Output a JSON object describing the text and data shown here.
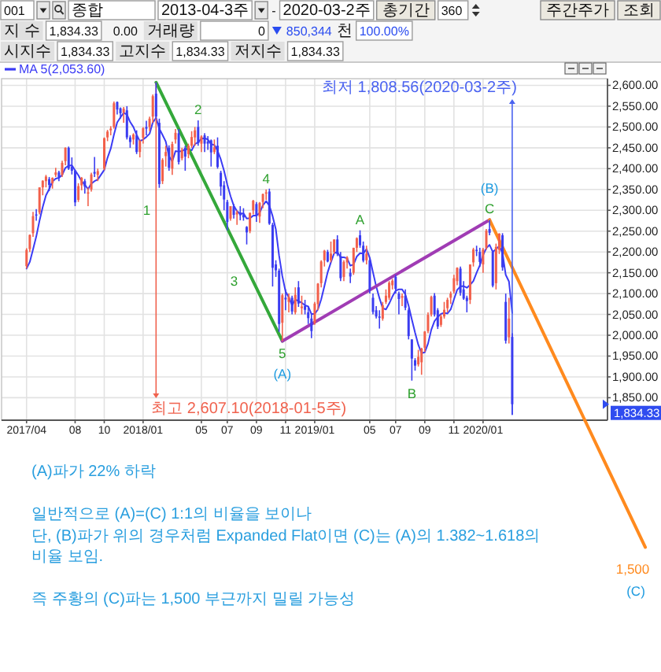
{
  "chart_data": {
    "type": "candlestick",
    "x": [
      "2017-04-24",
      "2017-05-01",
      "2017-05-08",
      "2017-05-15",
      "2017-05-22",
      "2017-05-29",
      "2017-06-05",
      "2017-06-12",
      "2017-06-19",
      "2017-06-26",
      "2017-07-03",
      "2017-07-10",
      "2017-07-17",
      "2017-07-24",
      "2017-07-31",
      "2017-08-07",
      "2017-08-14",
      "2017-08-21",
      "2017-08-28",
      "2017-09-04",
      "2017-09-11",
      "2017-09-18",
      "2017-09-25",
      "2017-10-09",
      "2017-10-16",
      "2017-10-23",
      "2017-10-30",
      "2017-11-06",
      "2017-11-13",
      "2017-11-20",
      "2017-11-27",
      "2017-12-04",
      "2017-12-11",
      "2017-12-18",
      "2017-12-25",
      "2018-01-01",
      "2018-01-08",
      "2018-01-15",
      "2018-01-22",
      "2018-01-29",
      "2018-02-05",
      "2018-02-12",
      "2018-02-19",
      "2018-02-26",
      "2018-03-05",
      "2018-03-12",
      "2018-03-19",
      "2018-03-26",
      "2018-04-02",
      "2018-04-09",
      "2018-04-16",
      "2018-04-23",
      "2018-04-30",
      "2018-05-07",
      "2018-05-14",
      "2018-05-21",
      "2018-05-28",
      "2018-06-04",
      "2018-06-11",
      "2018-06-18",
      "2018-06-25",
      "2018-07-02",
      "2018-07-09",
      "2018-07-16",
      "2018-07-23",
      "2018-07-30",
      "2018-08-06",
      "2018-08-13",
      "2018-08-20",
      "2018-08-27",
      "2018-09-03",
      "2018-09-10",
      "2018-09-17",
      "2018-09-24",
      "2018-10-01",
      "2018-10-08",
      "2018-10-15",
      "2018-10-22",
      "2018-10-29",
      "2018-11-05",
      "2018-11-12",
      "2018-11-19",
      "2018-11-26",
      "2018-12-03",
      "2018-12-10",
      "2018-12-17",
      "2018-12-24",
      "2018-12-31",
      "2019-01-07",
      "2019-01-14",
      "2019-01-21",
      "2019-01-28",
      "2019-02-04",
      "2019-02-11",
      "2019-02-18",
      "2019-02-25",
      "2019-03-04",
      "2019-03-11",
      "2019-03-18",
      "2019-03-25",
      "2019-04-01",
      "2019-04-08",
      "2019-04-15",
      "2019-04-22",
      "2019-04-29",
      "2019-05-06",
      "2019-05-13",
      "2019-05-20",
      "2019-05-27",
      "2019-06-03",
      "2019-06-10",
      "2019-06-17",
      "2019-06-24",
      "2019-07-01",
      "2019-07-08",
      "2019-07-15",
      "2019-07-22",
      "2019-07-29",
      "2019-08-05",
      "2019-08-12",
      "2019-08-19",
      "2019-08-26",
      "2019-09-02",
      "2019-09-09",
      "2019-09-16",
      "2019-09-23",
      "2019-09-30",
      "2019-10-07",
      "2019-10-14",
      "2019-10-21",
      "2019-10-28",
      "2019-11-04",
      "2019-11-11",
      "2019-11-18",
      "2019-11-25",
      "2019-12-02",
      "2019-12-09",
      "2019-12-16",
      "2019-12-23",
      "2019-12-30",
      "2020-01-06",
      "2020-01-13",
      "2020-01-20",
      "2020-01-27",
      "2020-02-03",
      "2020-02-10",
      "2020-02-17",
      "2020-02-24",
      "2020-03-02",
      "2020-03-09"
    ],
    "ohlc": [
      [
        2166,
        2209,
        2160,
        2205
      ],
      [
        2207,
        2242,
        2200,
        2241
      ],
      [
        2245,
        2296,
        2236,
        2286
      ],
      [
        2290,
        2303,
        2275,
        2288
      ],
      [
        2295,
        2355,
        2290,
        2355
      ],
      [
        2355,
        2372,
        2336,
        2371
      ],
      [
        2370,
        2385,
        2355,
        2381
      ],
      [
        2375,
        2380,
        2346,
        2361
      ],
      [
        2365,
        2379,
        2352,
        2378
      ],
      [
        2385,
        2402,
        2380,
        2391
      ],
      [
        2391,
        2395,
        2370,
        2379
      ],
      [
        2385,
        2419,
        2380,
        2414
      ],
      [
        2418,
        2451,
        2408,
        2450
      ],
      [
        2450,
        2453,
        2397,
        2400
      ],
      [
        2405,
        2427,
        2386,
        2395
      ],
      [
        2395,
        2397,
        2310,
        2319
      ],
      [
        2325,
        2365,
        2320,
        2358
      ],
      [
        2360,
        2380,
        2348,
        2378
      ],
      [
        2370,
        2375,
        2340,
        2357
      ],
      [
        2340,
        2355,
        2310,
        2343
      ],
      [
        2350,
        2390,
        2345,
        2386
      ],
      [
        2392,
        2428,
        2380,
        2388
      ],
      [
        2385,
        2400,
        2370,
        2394
      ],
      [
        2400,
        2475,
        2396,
        2473
      ],
      [
        2475,
        2493,
        2466,
        2489
      ],
      [
        2492,
        2502,
        2480,
        2496
      ],
      [
        2500,
        2561,
        2496,
        2557
      ],
      [
        2560,
        2561,
        2530,
        2542
      ],
      [
        2545,
        2547,
        2520,
        2533
      ],
      [
        2535,
        2548,
        2510,
        2544
      ],
      [
        2540,
        2550,
        2470,
        2475
      ],
      [
        2475,
        2480,
        2450,
        2464
      ],
      [
        2470,
        2485,
        2458,
        2482
      ],
      [
        2480,
        2492,
        2435,
        2440
      ],
      [
        2440,
        2470,
        2427,
        2467
      ],
      [
        2474,
        2500,
        2460,
        2497
      ],
      [
        2500,
        2515,
        2480,
        2496
      ],
      [
        2500,
        2525,
        2490,
        2520
      ],
      [
        2525,
        2578,
        2510,
        2574
      ],
      [
        2580,
        2607.1,
        2520,
        2525
      ],
      [
        2510,
        2520,
        2354,
        2363
      ],
      [
        2370,
        2425,
        2363,
        2421
      ],
      [
        2430,
        2455,
        2405,
        2440
      ],
      [
        2450,
        2456,
        2395,
        2402
      ],
      [
        2400,
        2465,
        2385,
        2459
      ],
      [
        2470,
        2495,
        2460,
        2486
      ],
      [
        2485,
        2495,
        2410,
        2416
      ],
      [
        2425,
        2450,
        2420,
        2445
      ],
      [
        2450,
        2455,
        2395,
        2429
      ],
      [
        2435,
        2460,
        2425,
        2455
      ],
      [
        2455,
        2490,
        2450,
        2476
      ],
      [
        2475,
        2500,
        2455,
        2492
      ],
      [
        2500,
        2516,
        2455,
        2461
      ],
      [
        2460,
        2480,
        2440,
        2477
      ],
      [
        2480,
        2485,
        2440,
        2460
      ],
      [
        2465,
        2478,
        2445,
        2460
      ],
      [
        2468,
        2470,
        2405,
        2439
      ],
      [
        2440,
        2470,
        2435,
        2451
      ],
      [
        2455,
        2475,
        2400,
        2404
      ],
      [
        2390,
        2395,
        2335,
        2357
      ],
      [
        2360,
        2370,
        2300,
        2326
      ],
      [
        2320,
        2325,
        2252,
        2272
      ],
      [
        2280,
        2310,
        2275,
        2310
      ],
      [
        2310,
        2315,
        2280,
        2289
      ],
      [
        2290,
        2300,
        2265,
        2295
      ],
      [
        2295,
        2310,
        2276,
        2288
      ],
      [
        2290,
        2305,
        2275,
        2283
      ],
      [
        2260,
        2262,
        2218,
        2247
      ],
      [
        2250,
        2294,
        2245,
        2294
      ],
      [
        2300,
        2325,
        2290,
        2323
      ],
      [
        2315,
        2320,
        2272,
        2288
      ],
      [
        2285,
        2320,
        2270,
        2318
      ],
      [
        2320,
        2340,
        2305,
        2339
      ],
      [
        2340,
        2350,
        2325,
        2343
      ],
      [
        2345,
        2352,
        2265,
        2268
      ],
      [
        2265,
        2270,
        2117,
        2162
      ],
      [
        2170,
        2180,
        2140,
        2156
      ],
      [
        2155,
        2160,
        2008,
        2027
      ],
      [
        2030,
        2100,
        1986,
        2096
      ],
      [
        2090,
        2110,
        2060,
        2086
      ],
      [
        2080,
        2100,
        2055,
        2092
      ],
      [
        2090,
        2095,
        2050,
        2057
      ],
      [
        2055,
        2115,
        2050,
        2097
      ],
      [
        2115,
        2130,
        2068,
        2076
      ],
      [
        2065,
        2095,
        2050,
        2069
      ],
      [
        2070,
        2085,
        2050,
        2061
      ],
      [
        2055,
        2070,
        2027,
        2041
      ],
      [
        2040,
        2050,
        1993,
        2010
      ],
      [
        2030,
        2080,
        2025,
        2076
      ],
      [
        2075,
        2125,
        2060,
        2124
      ],
      [
        2125,
        2180,
        2115,
        2177
      ],
      [
        2180,
        2205,
        2165,
        2203
      ],
      [
        2200,
        2205,
        2175,
        2177
      ],
      [
        2180,
        2225,
        2175,
        2196
      ],
      [
        2200,
        2230,
        2195,
        2230
      ],
      [
        2230,
        2240,
        2190,
        2195
      ],
      [
        2190,
        2200,
        2130,
        2137
      ],
      [
        2140,
        2180,
        2130,
        2176
      ],
      [
        2175,
        2190,
        2160,
        2187
      ],
      [
        2150,
        2160,
        2125,
        2141
      ],
      [
        2150,
        2210,
        2145,
        2210
      ],
      [
        2210,
        2235,
        2200,
        2233
      ],
      [
        2240,
        2252,
        2210,
        2216
      ],
      [
        2215,
        2225,
        2175,
        2179
      ],
      [
        2180,
        2215,
        2170,
        2196
      ],
      [
        2180,
        2185,
        2100,
        2108
      ],
      [
        2090,
        2100,
        2050,
        2056
      ],
      [
        2060,
        2070,
        2040,
        2045
      ],
      [
        2045,
        2060,
        2016,
        2042
      ],
      [
        2040,
        2080,
        2035,
        2072
      ],
      [
        2080,
        2110,
        2075,
        2095
      ],
      [
        2090,
        2130,
        2085,
        2126
      ],
      [
        2120,
        2135,
        2110,
        2131
      ],
      [
        2140,
        2145,
        2100,
        2111
      ],
      [
        2100,
        2105,
        2050,
        2087
      ],
      [
        2090,
        2100,
        2070,
        2094
      ],
      [
        2095,
        2110,
        2060,
        2066
      ],
      [
        2060,
        2065,
        1990,
        1998
      ],
      [
        1990,
        1990,
        1891,
        1944
      ],
      [
        1940,
        1945,
        1915,
        1927
      ],
      [
        1930,
        1965,
        1925,
        1948
      ],
      [
        1935,
        1970,
        1905,
        1968
      ],
      [
        1970,
        2010,
        1960,
        2009
      ],
      [
        2010,
        2055,
        2005,
        2049
      ],
      [
        2050,
        2095,
        2045,
        2092
      ],
      [
        2095,
        2101,
        2045,
        2050
      ],
      [
        2060,
        2065,
        2015,
        2021
      ],
      [
        2025,
        2050,
        2020,
        2045
      ],
      [
        2045,
        2080,
        2040,
        2061
      ],
      [
        2065,
        2090,
        2055,
        2085
      ],
      [
        2090,
        2105,
        2075,
        2100
      ],
      [
        2105,
        2145,
        2100,
        2137
      ],
      [
        2130,
        2163,
        2120,
        2162
      ],
      [
        2160,
        2165,
        2095,
        2102
      ],
      [
        2110,
        2130,
        2085,
        2088
      ],
      [
        2090,
        2095,
        2055,
        2082
      ],
      [
        2085,
        2170,
        2075,
        2170
      ],
      [
        2175,
        2210,
        2165,
        2206
      ],
      [
        2205,
        2215,
        2190,
        2204
      ],
      [
        2200,
        2210,
        2164,
        2176
      ],
      [
        2170,
        2210,
        2150,
        2206
      ],
      [
        2210,
        2255,
        2205,
        2251
      ],
      [
        2255,
        2277,
        2240,
        2246
      ],
      [
        2200,
        2200,
        2115,
        2119
      ],
      [
        2125,
        2220,
        2110,
        2212
      ],
      [
        2205,
        2245,
        2195,
        2244
      ],
      [
        2240,
        2245,
        2155,
        2163
      ],
      [
        2080,
        2100,
        1980,
        1987
      ],
      [
        1995,
        2090,
        1980,
        2040
      ],
      [
        1996,
        2005,
        1808.56,
        1834.33
      ]
    ],
    "colors": [
      "#f2604b",
      "#f2604b",
      "#f2604b",
      "#3a3cf0",
      "#f2604b",
      "#f2604b",
      "#f2604b",
      "#3a3cf0",
      "#f2604b",
      "#f2604b",
      "#3a3cf0",
      "#f2604b",
      "#f2604b",
      "#3a3cf0",
      "#3a3cf0",
      "#3a3cf0",
      "#f2604b",
      "#f2604b",
      "#3a3cf0",
      "#f2604b",
      "#f2604b",
      "#3a3cf0",
      "#f2604b",
      "#f2604b",
      "#f2604b",
      "#f2604b",
      "#f2604b",
      "#3a3cf0",
      "#3a3cf0",
      "#f2604b",
      "#3a3cf0",
      "#3a3cf0",
      "#f2604b",
      "#3a3cf0",
      "#f2604b",
      "#f2604b",
      "#3a3cf0",
      "#f2604b",
      "#f2604b",
      "#3a3cf0",
      "#3a3cf0",
      "#f2604b",
      "#f2604b",
      "#3a3cf0",
      "#f2604b",
      "#f2604b",
      "#3a3cf0",
      "#f2604b",
      "#3a3cf0",
      "#f2604b",
      "#f2604b",
      "#f2604b",
      "#3a3cf0",
      "#f2604b",
      "#3a3cf0",
      "#3a3cf0",
      "#3a3cf0",
      "#f2604b",
      "#3a3cf0",
      "#3a3cf0",
      "#3a3cf0",
      "#3a3cf0",
      "#f2604b",
      "#3a3cf0",
      "#f2604b",
      "#3a3cf0",
      "#3a3cf0",
      "#3a3cf0",
      "#f2604b",
      "#f2604b",
      "#3a3cf0",
      "#f2604b",
      "#f2604b",
      "#f2604b",
      "#3a3cf0",
      "#3a3cf0",
      "#3a3cf0",
      "#3a3cf0",
      "#f2604b",
      "#3a3cf0",
      "#f2604b",
      "#3a3cf0",
      "#f2604b",
      "#3a3cf0",
      "#f2604b",
      "#3a3cf0",
      "#3a3cf0",
      "#3a3cf0",
      "#f2604b",
      "#f2604b",
      "#f2604b",
      "#f2604b",
      "#3a3cf0",
      "#f2604b",
      "#f2604b",
      "#3a3cf0",
      "#3a3cf0",
      "#f2604b",
      "#f2604b",
      "#3a3cf0",
      "#f2604b",
      "#f2604b",
      "#3a3cf0",
      "#3a3cf0",
      "#f2604b",
      "#3a3cf0",
      "#3a3cf0",
      "#3a3cf0",
      "#3a3cf0",
      "#f2604b",
      "#f2604b",
      "#f2604b",
      "#f2604b",
      "#3a3cf0",
      "#3a3cf0",
      "#f2604b",
      "#3a3cf0",
      "#3a3cf0",
      "#3a3cf0",
      "#3a3cf0",
      "#f2604b",
      "#f2604b",
      "#f2604b",
      "#f2604b",
      "#f2604b",
      "#3a3cf0",
      "#3a3cf0",
      "#f2604b",
      "#f2604b",
      "#f2604b",
      "#f2604b",
      "#f2604b",
      "#f2604b",
      "#3a3cf0",
      "#3a3cf0",
      "#3a3cf0",
      "#f2604b",
      "#f2604b",
      "#3a3cf0",
      "#3a3cf0",
      "#f2604b",
      "#f2604b",
      "#3a3cf0",
      "#3a3cf0",
      "#f2604b",
      "#f2604b",
      "#3a3cf0",
      "#3a3cf0",
      "#f2604b",
      "#3a3cf0"
    ],
    "series": [
      {
        "type": "line",
        "name": "MA 5(2,053.60)",
        "color": "#3b3bf5",
        "values": [
          2160,
          2176,
          2206,
          2237,
          2275,
          2308,
          2336,
          2351,
          2369,
          2376,
          2378,
          2385,
          2402,
          2407,
          2408,
          2396,
          2384,
          2370,
          2361,
          2351,
          2364,
          2370,
          2374,
          2397,
          2426,
          2448,
          2482,
          2511,
          2523,
          2534,
          2530,
          2512,
          2500,
          2481,
          2466,
          2470,
          2476,
          2484,
          2511,
          2522,
          2496,
          2481,
          2465,
          2430,
          2417,
          2442,
          2441,
          2442,
          2447,
          2446,
          2444,
          2459,
          2463,
          2472,
          2473,
          2470,
          2459,
          2457,
          2443,
          2422,
          2395,
          2362,
          2334,
          2311,
          2298,
          2291,
          2293,
          2280,
          2281,
          2287,
          2287,
          2294,
          2312,
          2322,
          2311,
          2286,
          2254,
          2191,
          2142,
          2105,
          2091,
          2072,
          2086,
          2082,
          2078,
          2072,
          2069,
          2051,
          2051,
          2062,
          2086,
          2118,
          2151,
          2175,
          2197,
          2200,
          2187,
          2187,
          2185,
          2167,
          2170,
          2189,
          2197,
          2196,
          2207,
          2186,
          2151,
          2117,
          2089,
          2065,
          2062,
          2076,
          2093,
          2107,
          2110,
          2110,
          2098,
          2071,
          2038,
          2006,
          1977,
          1957,
          1959,
          1980,
          2013,
          2034,
          2044,
          2051,
          2054,
          2052,
          2062,
          2086,
          2109,
          2117,
          2118,
          2114,
          2121,
          2130,
          2150,
          2168,
          2192,
          2209,
          2217,
          2200,
          2207,
          2214,
          2197,
          2145,
          2129,
          2053.6
        ]
      },
      {
        "type": "line",
        "color": "#34a83a",
        "x": [
          "2018-01-29",
          "2018-10-29"
        ],
        "values": [
          2607.1,
          1986
        ]
      },
      {
        "type": "line",
        "color": "#a03cb4",
        "x": [
          "2018-10-29",
          "2020-01-20"
        ],
        "values": [
          1986,
          2277
        ]
      },
      {
        "type": "line",
        "color": "#ff8a1e",
        "x": [
          "2020-01-20",
          "2020-08-13"
        ],
        "values": [
          2277,
          1796
        ]
      }
    ],
    "xlim": [
      "2017-03-01",
      "2020-10-01"
    ],
    "xticks": [
      {
        "value": "2017-04-24",
        "label": "2017/04"
      },
      {
        "value": "2017-08-07",
        "label": "08"
      },
      {
        "value": "2017-10-09",
        "label": "10"
      },
      {
        "value": "2018-01-01",
        "label": "2018/01"
      },
      {
        "value": "2018-05-07",
        "label": "05"
      },
      {
        "value": "2018-07-02",
        "label": "07"
      },
      {
        "value": "2018-09-03",
        "label": "09"
      },
      {
        "value": "2018-11-05",
        "label": "11"
      },
      {
        "value": "2019-01-07",
        "label": "2019/01"
      },
      {
        "value": "2019-05-06",
        "label": "05"
      },
      {
        "value": "2019-07-01",
        "label": "07"
      },
      {
        "value": "2019-09-02",
        "label": "09"
      },
      {
        "value": "2019-11-04",
        "label": "11"
      },
      {
        "value": "2020-01-06",
        "label": "2020/01"
      }
    ],
    "ylim": [
      1796,
      2616
    ],
    "yticks": [
      {
        "value": 1850,
        "label": "1,850.00"
      },
      {
        "value": 1900,
        "label": "1,900.00"
      },
      {
        "value": 1950,
        "label": "1,950.00"
      },
      {
        "value": 2000,
        "label": "2,000.00"
      },
      {
        "value": 2050,
        "label": "2,050.00"
      },
      {
        "value": 2100,
        "label": "2,100.00"
      },
      {
        "value": 2150,
        "label": "2,150.00"
      },
      {
        "value": 2200,
        "label": "2,200.00"
      },
      {
        "value": 2250,
        "label": "2,250.00"
      },
      {
        "value": 2300,
        "label": "2,300.00"
      },
      {
        "value": 2350,
        "label": "2,350.00"
      },
      {
        "value": 2400,
        "label": "2,400.00"
      },
      {
        "value": 2450,
        "label": "2,450.00"
      },
      {
        "value": 2500,
        "label": "2,500.00"
      },
      {
        "value": 2550,
        "label": "2,550.00"
      },
      {
        "value": 2600,
        "label": "2,600.00"
      }
    ],
    "grid": true,
    "legend": "top left",
    "annotations": [
      {
        "text": "최고 2,607.10(2018-01-5주)",
        "x": "2018-01-29",
        "y": 2607.1
      },
      {
        "text": "최저 1,808.56(2020-03-2주)",
        "x": "2020-03-09",
        "y": 1808.56
      },
      {
        "text": "1",
        "x": "2018-02-05",
        "y": 2354
      },
      {
        "text": "2",
        "x": "2018-04-30",
        "y": 2516
      },
      {
        "text": "3",
        "x": "2018-08-13",
        "y": 2218
      },
      {
        "text": "4",
        "x": "2018-09-24",
        "y": 2350
      },
      {
        "text": "5",
        "x": "2018-10-29",
        "y": 1986
      },
      {
        "text": "A",
        "x": "2019-04-15",
        "y": 2252
      },
      {
        "text": "B",
        "x": "2019-08-05",
        "y": 1891
      },
      {
        "text": "C",
        "x": "2020-01-20",
        "y": 2277
      },
      {
        "text": "(A)",
        "x": "2018-10-29",
        "y": 1986
      },
      {
        "text": "(B)",
        "x": "2020-01-20",
        "y": 2277
      },
      "1,500",
      "(C)",
      "1,834.33",
      "(A)파가 22% 하락",
      "일반적으로 (A)=(C) 1:1의 비율을 보이나",
      "단, (B)파가 위의 경우처럼 Expanded Flat이면 (C)는 (A)의 1.382~1.618의 비율 보임.",
      "즉 주황의 (C)파는 1,500 부근까지 밀릴 가능성",
      "001",
      "종합",
      "2013-04-3주",
      "-",
      "2020-03-2주",
      "총기간",
      "360",
      "주간주가",
      "조회",
      "지 수",
      "1,834.33",
      "0.00",
      "거래량",
      "0",
      "850,344",
      "천",
      "100.00%",
      "시지수",
      "1,834.33",
      "고지수",
      "1,834.33",
      "저지수",
      "1,834.33"
    ]
  }
}
